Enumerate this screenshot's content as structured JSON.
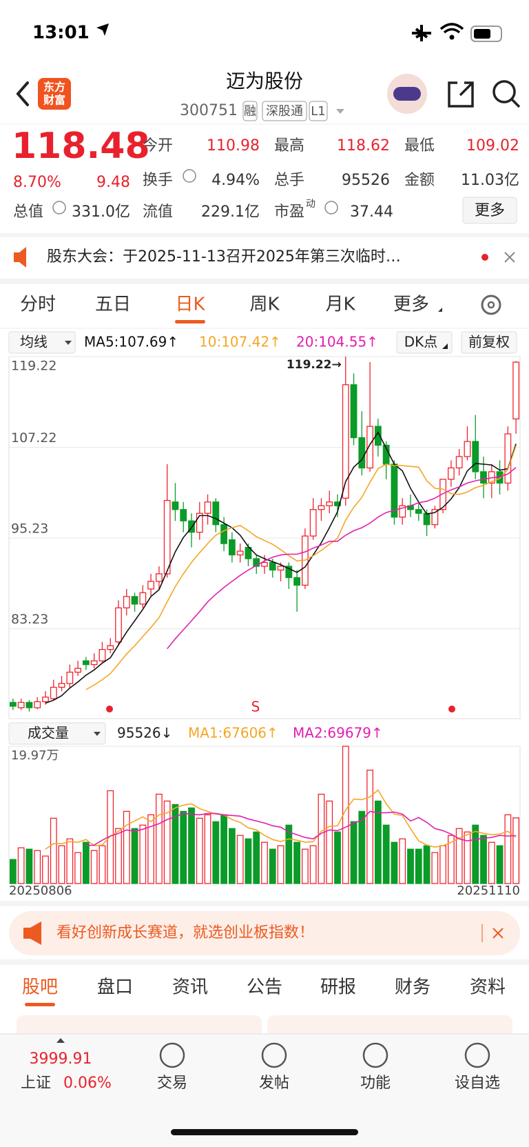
{
  "status_bar": {
    "time": "13:01"
  },
  "header": {
    "title": "迈为股份",
    "code": "300751",
    "tags": [
      "融",
      "深股通",
      "L1"
    ],
    "logo": [
      "东方",
      "财富"
    ]
  },
  "quote": {
    "price": "118.48",
    "change_pct": "8.70%",
    "change": "9.48",
    "more": "更多",
    "fields": [
      {
        "label": "今开",
        "value": "110.98"
      },
      {
        "label": "最高",
        "value": "118.62"
      },
      {
        "label": "最低",
        "value": "109.02"
      },
      {
        "label": "换手",
        "value": "4.94%"
      },
      {
        "label": "总手",
        "value": "95526"
      },
      {
        "label": "金额",
        "value": "11.03亿"
      },
      {
        "label": "总值",
        "value": "331.0亿"
      },
      {
        "label": "流值",
        "value": "229.1亿"
      },
      {
        "label": "市盈",
        "sup": "动",
        "value": "37.44"
      }
    ]
  },
  "notice": "股东大会：于2025-11-13召开2025年第三次临时…",
  "period_tabs": {
    "items": [
      "分时",
      "五日",
      "日K",
      "周K",
      "月K",
      "更多"
    ],
    "active": 2
  },
  "indicator_bar": {
    "ma_select": "均线",
    "ma_legend": [
      "MA5:107.69↑",
      "10:107.42↑",
      "20:104.55↑"
    ],
    "dk": "DK点",
    "adjust": "前复权"
  },
  "chart_data": [
    {
      "type": "candlestick",
      "up_color": "#f0232d",
      "down_color": "#0a9b28",
      "grid": true,
      "ylim": [
        71.35,
        119.22
      ],
      "yticks": [
        83.23,
        95.23,
        107.22,
        119.22
      ],
      "max_label": "119.22→",
      "signal_labels": [
        "S"
      ],
      "categories": [
        "20250806",
        null,
        null,
        null,
        null,
        null,
        null,
        null,
        null,
        null,
        null,
        null,
        null,
        null,
        null,
        null,
        null,
        null,
        null,
        null,
        null,
        null,
        null,
        null,
        null,
        null,
        null,
        null,
        null,
        null,
        null,
        null,
        null,
        null,
        null,
        null,
        null,
        null,
        null,
        null,
        null,
        null,
        null,
        null,
        null,
        null,
        null,
        null,
        null,
        null,
        null,
        null,
        null,
        null,
        null,
        null,
        null,
        null,
        null,
        null,
        null,
        null,
        "20251110"
      ],
      "ohlc": [
        [
          73.5,
          74.0,
          72.5,
          73.0
        ],
        [
          72.8,
          74.0,
          72.5,
          73.5
        ],
        [
          73.5,
          73.8,
          72.3,
          72.8
        ],
        [
          72.8,
          74.2,
          72.6,
          73.6
        ],
        [
          73.6,
          75.0,
          73.2,
          74.2
        ],
        [
          74.0,
          76.5,
          73.8,
          75.5
        ],
        [
          75.5,
          77.0,
          75.0,
          76.0
        ],
        [
          76.0,
          78.5,
          75.5,
          77.5
        ],
        [
          77.5,
          79.0,
          77.0,
          78.0
        ],
        [
          79.0,
          79.5,
          77.8,
          78.5
        ],
        [
          78.5,
          80.0,
          78.0,
          79.0
        ],
        [
          79.0,
          81.5,
          78.8,
          80.5
        ],
        [
          80.5,
          82.0,
          80.0,
          81.0
        ],
        [
          81.5,
          87.0,
          81.0,
          86.0
        ],
        [
          86.0,
          88.5,
          85.0,
          87.5
        ],
        [
          87.5,
          88.0,
          85.5,
          86.5
        ],
        [
          86.5,
          89.0,
          86.0,
          88.0
        ],
        [
          88.5,
          90.5,
          87.5,
          89.5
        ],
        [
          89.5,
          91.5,
          88.5,
          90.5
        ],
        [
          90.5,
          105.0,
          90.0,
          100.2
        ],
        [
          100.0,
          102.5,
          97.5,
          99.0
        ],
        [
          99.0,
          100.0,
          96.0,
          97.5
        ],
        [
          97.5,
          98.5,
          94.0,
          96.0
        ],
        [
          96.0,
          100.0,
          95.0,
          98.5
        ],
        [
          98.5,
          101.0,
          97.0,
          100.0
        ],
        [
          100.0,
          100.5,
          96.0,
          97.0
        ],
        [
          97.0,
          98.0,
          93.5,
          94.5
        ],
        [
          95.0,
          96.0,
          92.0,
          93.0
        ],
        [
          93.0,
          94.5,
          92.0,
          93.5
        ],
        [
          94.0,
          94.5,
          91.5,
          92.5
        ],
        [
          92.5,
          93.0,
          90.5,
          91.5
        ],
        [
          91.5,
          93.0,
          90.5,
          92.0
        ],
        [
          92.0,
          92.5,
          90.0,
          91.0
        ],
        [
          91.0,
          92.0,
          89.5,
          91.5
        ],
        [
          91.5,
          92.0,
          88.5,
          90.0
        ],
        [
          90.0,
          91.0,
          85.5,
          89.0
        ],
        [
          89.0,
          96.5,
          88.5,
          95.5
        ],
        [
          95.5,
          100.5,
          95.0,
          99.0
        ],
        [
          99.0,
          100.5,
          97.5,
          99.5
        ],
        [
          99.5,
          101.5,
          98.5,
          100.0
        ],
        [
          100.0,
          101.0,
          98.0,
          99.5
        ],
        [
          100.5,
          119.22,
          99.5,
          115.5
        ],
        [
          115.5,
          117.0,
          107.5,
          108.5
        ],
        [
          108.5,
          112.0,
          103.5,
          104.5
        ],
        [
          104.5,
          118.5,
          104.0,
          110.0
        ],
        [
          110.0,
          111.0,
          106.0,
          107.5
        ],
        [
          107.5,
          108.0,
          103.0,
          105.0
        ],
        [
          105.0,
          105.5,
          97.0,
          98.0
        ],
        [
          98.0,
          100.5,
          97.0,
          99.5
        ],
        [
          99.5,
          101.0,
          98.0,
          99.0
        ],
        [
          99.0,
          100.0,
          97.5,
          98.5
        ],
        [
          98.5,
          99.0,
          95.5,
          97.0
        ],
        [
          97.0,
          99.5,
          96.5,
          99.0
        ],
        [
          99.0,
          103.0,
          98.5,
          103.0
        ],
        [
          103.0,
          105.5,
          102.0,
          104.5
        ],
        [
          104.5,
          107.0,
          103.5,
          106.0
        ],
        [
          106.0,
          110.0,
          105.5,
          108.0
        ],
        [
          108.0,
          111.5,
          103.0,
          104.0
        ],
        [
          104.0,
          106.0,
          100.5,
          102.5
        ],
        [
          102.5,
          105.0,
          100.5,
          104.0
        ],
        [
          104.0,
          105.5,
          101.0,
          102.5
        ],
        [
          102.5,
          110.0,
          101.5,
          109.0
        ],
        [
          110.98,
          118.62,
          109.02,
          118.48
        ]
      ],
      "series": [
        {
          "color": "#111111",
          "values": [
            null,
            null,
            null,
            null,
            73.4,
            73.8,
            74.4,
            75.4,
            76.2,
            77.1,
            77.8,
            78.7,
            79.4,
            81.1,
            82.8,
            84.3,
            85.8,
            87.5,
            88.4,
            90.9,
            93.4,
            95.3,
            96.6,
            98.2,
            98.2,
            97.8,
            97.2,
            96.6,
            95.6,
            94.1,
            93.0,
            92.5,
            92.1,
            91.7,
            91.2,
            90.7,
            91.4,
            93.0,
            94.6,
            96.6,
            98.7,
            102.7,
            104.6,
            105.6,
            107.6,
            109.2,
            107.1,
            105.0,
            104.1,
            101.8,
            100.0,
            98.4,
            98.6,
            99.3,
            100.4,
            101.9,
            104.1,
            105.1,
            105.0,
            104.9,
            104.2,
            104.4,
            107.69
          ]
        },
        {
          "color": "#f5a623",
          "values": [
            null,
            null,
            null,
            null,
            null,
            null,
            null,
            null,
            null,
            75.2,
            75.8,
            76.5,
            77.3,
            78.6,
            79.9,
            81.0,
            82.2,
            83.4,
            84.7,
            86.8,
            88.8,
            90.5,
            92.0,
            93.3,
            94.5,
            95.6,
            96.2,
            96.6,
            96.9,
            96.2,
            95.4,
            94.9,
            94.4,
            93.7,
            92.9,
            92.2,
            92.3,
            92.9,
            93.6,
            94.4,
            95.2,
            97.6,
            99.3,
            100.6,
            102.6,
            104.4,
            105.0,
            104.8,
            104.8,
            104.7,
            104.6,
            102.8,
            101.8,
            101.7,
            101.1,
            101.0,
            101.3,
            101.9,
            102.2,
            102.7,
            103.1,
            104.3,
            107.42
          ]
        },
        {
          "color": "#e21fae",
          "values": [
            null,
            null,
            null,
            null,
            null,
            null,
            null,
            null,
            null,
            null,
            null,
            null,
            null,
            null,
            null,
            null,
            null,
            null,
            null,
            80.6,
            81.9,
            83.1,
            84.3,
            85.5,
            86.8,
            87.8,
            88.7,
            89.5,
            90.3,
            91.0,
            91.6,
            92.2,
            92.7,
            93.0,
            93.1,
            93.1,
            93.4,
            93.9,
            94.3,
            94.8,
            94.8,
            95.6,
            96.2,
            96.6,
            97.2,
            98.0,
            98.6,
            98.9,
            99.2,
            99.5,
            99.9,
            100.1,
            100.5,
            101.1,
            101.6,
            102.0,
            102.5,
            102.8,
            103.0,
            103.2,
            103.3,
            103.7,
            104.55
          ]
        }
      ]
    },
    {
      "type": "bar",
      "ylim": [
        0,
        19.97
      ],
      "yticks": [
        {
          "value": 19.97,
          "label": "19.97万"
        }
      ],
      "values": [
        3.5,
        5.2,
        5.0,
        4.8,
        4.0,
        9.5,
        5.5,
        6.5,
        4.5,
        6.0,
        4.8,
        5.5,
        13.5,
        8.0,
        10.5,
        8.0,
        8.5,
        10.0,
        13.0,
        12.0,
        11.5,
        10.5,
        11.0,
        9.5,
        10.0,
        9.0,
        10.0,
        8.0,
        7.0,
        6.5,
        7.5,
        6.0,
        5.0,
        5.5,
        8.5,
        6.0,
        5.0,
        5.5,
        13.0,
        12.0,
        7.5,
        19.97,
        9.0,
        10.5,
        16.5,
        12.0,
        8.5,
        6.0,
        6.5,
        5.0,
        5.0,
        5.5,
        4.5,
        5.5,
        7.0,
        8.0,
        7.5,
        8.5,
        7.0,
        6.0,
        5.5,
        10.0,
        9.55
      ],
      "series": [
        {
          "color": "#f5a623",
          "values": [
            null,
            null,
            null,
            null,
            5.0,
            5.8,
            5.8,
            6.1,
            6.0,
            6.4,
            5.5,
            5.6,
            6.9,
            7.6,
            8.5,
            9.1,
            9.7,
            9.0,
            10.0,
            10.3,
            11.0,
            11.4,
            11.6,
            10.9,
            10.5,
            10.1,
            10.0,
            9.3,
            8.9,
            8.1,
            7.8,
            7.0,
            6.4,
            6.1,
            6.5,
            6.3,
            6.0,
            6.1,
            7.6,
            8.3,
            8.4,
            10.7,
            12.3,
            12.2,
            12.6,
            13.6,
            11.6,
            10.1,
            9.9,
            8.0,
            6.2,
            5.6,
            5.3,
            5.5,
            6.0,
            6.6,
            7.1,
            7.6,
            7.3,
            7.1,
            7.2,
            7.6,
            6.76
          ]
        },
        {
          "color": "#e21fae",
          "values": [
            null,
            null,
            null,
            null,
            null,
            null,
            null,
            null,
            null,
            5.5,
            5.6,
            6.3,
            6.9,
            7.3,
            7.8,
            7.6,
            7.9,
            8.3,
            8.7,
            9.3,
            9.7,
            10.2,
            10.1,
            10.0,
            10.2,
            10.2,
            10.0,
            9.9,
            9.8,
            9.4,
            9.1,
            8.8,
            8.4,
            8.2,
            7.5,
            7.1,
            6.7,
            6.5,
            7.3,
            7.8,
            7.7,
            8.2,
            8.8,
            9.2,
            10.5,
            10.3,
            10.3,
            10.4,
            10.1,
            9.1,
            9.6,
            8.9,
            8.0,
            7.7,
            7.2,
            6.5,
            6.2,
            6.4,
            6.6,
            6.7,
            7.0,
            6.9,
            6.97
          ]
        }
      ]
    }
  ],
  "volume_bar": {
    "select": "成交量",
    "legend": [
      "95526↓",
      "MA1:67606↑",
      "MA2:69679↑"
    ]
  },
  "ad": "看好创新成长赛道，就选创业板指数！",
  "info_tabs": {
    "items": [
      "股吧",
      "盘口",
      "资讯",
      "公告",
      "研报",
      "财务",
      "资料"
    ],
    "active": 0
  },
  "bottom_bar": {
    "index_value": "3999.91",
    "index_name": "上证",
    "index_change": "0.06%",
    "nav": [
      "交易",
      "发帖",
      "功能",
      "设自选"
    ]
  }
}
